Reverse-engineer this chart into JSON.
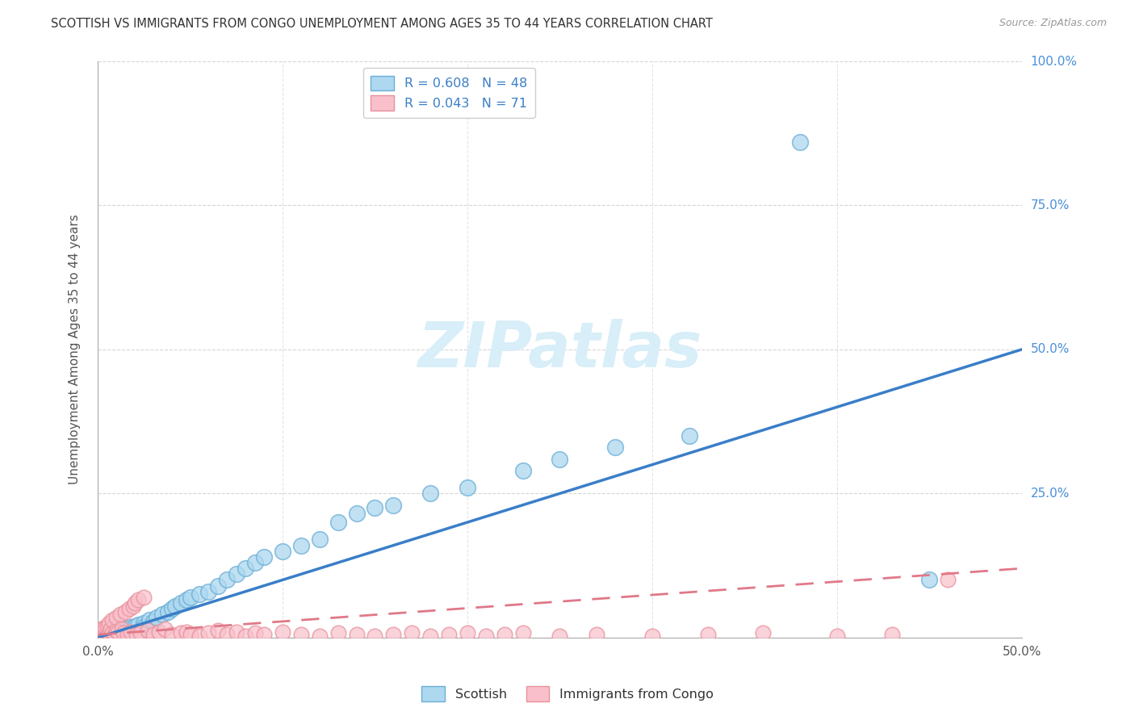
{
  "title": "SCOTTISH VS IMMIGRANTS FROM CONGO UNEMPLOYMENT AMONG AGES 35 TO 44 YEARS CORRELATION CHART",
  "source": "Source: ZipAtlas.com",
  "ylabel": "Unemployment Among Ages 35 to 44 years",
  "legend_bottom": [
    "Scottish",
    "Immigrants from Congo"
  ],
  "r_scottish": 0.608,
  "n_scottish": 48,
  "r_congo": 0.043,
  "n_congo": 71,
  "scottish_color": "#ADD8F0",
  "congo_color": "#F9C0CB",
  "scottish_edge_color": "#6AAED6",
  "congo_edge_color": "#E8909A",
  "scottish_line_color": "#3A7EC8",
  "congo_line_color": "#E07888",
  "watermark_color": "#D8EEF8",
  "scottish_x": [
    0.001,
    0.002,
    0.003,
    0.004,
    0.005,
    0.006,
    0.008,
    0.01,
    0.012,
    0.015,
    0.018,
    0.02,
    0.022,
    0.025,
    0.025,
    0.028,
    0.03,
    0.032,
    0.035,
    0.038,
    0.04,
    0.042,
    0.045,
    0.048,
    0.05,
    0.055,
    0.06,
    0.065,
    0.07,
    0.075,
    0.08,
    0.085,
    0.09,
    0.1,
    0.11,
    0.12,
    0.13,
    0.14,
    0.15,
    0.16,
    0.18,
    0.2,
    0.23,
    0.25,
    0.28,
    0.32,
    0.38,
    0.45
  ],
  "scottish_y": [
    0.003,
    0.005,
    0.002,
    0.008,
    0.004,
    0.006,
    0.01,
    0.008,
    0.012,
    0.015,
    0.018,
    0.02,
    0.022,
    0.025,
    0.018,
    0.03,
    0.028,
    0.035,
    0.04,
    0.045,
    0.05,
    0.055,
    0.06,
    0.065,
    0.07,
    0.075,
    0.08,
    0.09,
    0.1,
    0.11,
    0.12,
    0.13,
    0.14,
    0.15,
    0.16,
    0.17,
    0.2,
    0.215,
    0.225,
    0.23,
    0.25,
    0.26,
    0.29,
    0.31,
    0.33,
    0.35,
    0.86,
    0.1
  ],
  "congo_x": [
    0.001,
    0.001,
    0.002,
    0.002,
    0.003,
    0.003,
    0.004,
    0.004,
    0.005,
    0.005,
    0.006,
    0.006,
    0.007,
    0.007,
    0.008,
    0.008,
    0.009,
    0.01,
    0.01,
    0.011,
    0.012,
    0.013,
    0.014,
    0.015,
    0.016,
    0.017,
    0.018,
    0.019,
    0.02,
    0.021,
    0.022,
    0.023,
    0.025,
    0.027,
    0.03,
    0.033,
    0.036,
    0.04,
    0.045,
    0.048,
    0.05,
    0.055,
    0.06,
    0.065,
    0.07,
    0.075,
    0.08,
    0.085,
    0.09,
    0.1,
    0.11,
    0.12,
    0.13,
    0.14,
    0.15,
    0.16,
    0.17,
    0.18,
    0.19,
    0.2,
    0.21,
    0.22,
    0.23,
    0.25,
    0.27,
    0.3,
    0.33,
    0.36,
    0.4,
    0.43,
    0.46
  ],
  "congo_y": [
    0.008,
    0.012,
    0.005,
    0.015,
    0.003,
    0.01,
    0.006,
    0.018,
    0.004,
    0.02,
    0.007,
    0.025,
    0.003,
    0.015,
    0.008,
    0.03,
    0.005,
    0.012,
    0.035,
    0.01,
    0.04,
    0.015,
    0.008,
    0.045,
    0.005,
    0.05,
    0.01,
    0.055,
    0.06,
    0.005,
    0.065,
    0.008,
    0.07,
    0.012,
    0.005,
    0.01,
    0.015,
    0.005,
    0.008,
    0.01,
    0.005,
    0.003,
    0.008,
    0.012,
    0.005,
    0.01,
    0.003,
    0.008,
    0.005,
    0.01,
    0.005,
    0.003,
    0.008,
    0.005,
    0.003,
    0.005,
    0.008,
    0.003,
    0.005,
    0.008,
    0.003,
    0.005,
    0.008,
    0.003,
    0.005,
    0.003,
    0.005,
    0.008,
    0.003,
    0.005,
    0.1
  ],
  "xlim": [
    0.0,
    0.5
  ],
  "ylim": [
    0.0,
    1.0
  ],
  "yticks": [
    0.0,
    0.25,
    0.5,
    0.75,
    1.0
  ],
  "ytick_labels": [
    "",
    "25.0%",
    "50.0%",
    "75.0%",
    "100.0%"
  ],
  "background_color": "#FFFFFF",
  "grid_color": "#CCCCCC",
  "scottish_trend_x0": 0.0,
  "scottish_trend_y0": 0.0,
  "scottish_trend_x1": 0.5,
  "scottish_trend_y1": 0.5,
  "congo_trend_x0": 0.0,
  "congo_trend_y0": 0.005,
  "congo_trend_x1": 0.5,
  "congo_trend_y1": 0.12
}
